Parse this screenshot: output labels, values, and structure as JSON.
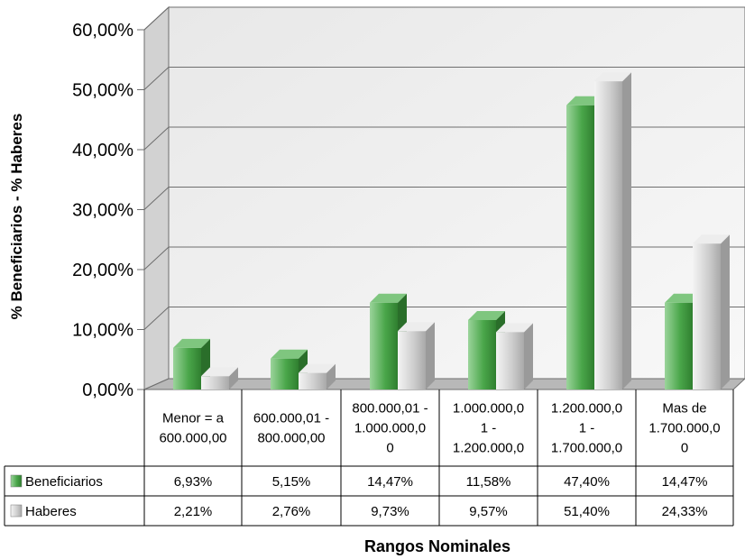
{
  "chart_data": {
    "type": "bar",
    "three_d": true,
    "title": "",
    "xlabel": "Rangos Nominales",
    "ylabel": "% Beneficiarios - % Haberes",
    "ylim": [
      0,
      60
    ],
    "y_ticks": [
      "0,00%",
      "10,00%",
      "20,00%",
      "30,00%",
      "40,00%",
      "50,00%",
      "60,00%"
    ],
    "grid": true,
    "legend": "data-table-left",
    "categories": [
      [
        "Menor = a",
        "600.000,00"
      ],
      [
        "600.000,01 -",
        "800.000,00"
      ],
      [
        "800.000,01 -",
        "1.000.000,0",
        "0"
      ],
      [
        "1.000.000,0",
        "1 -",
        "1.200.000,0"
      ],
      [
        "1.200.000,0",
        "1 -",
        "1.700.000,0"
      ],
      [
        "Mas de",
        "1.700.000,0",
        "0"
      ]
    ],
    "series": [
      {
        "name": "Beneficiarios",
        "color": "#4aa64a",
        "values": [
          6.93,
          5.15,
          14.47,
          11.58,
          47.4,
          14.47
        ],
        "labels": [
          "6,93%",
          "5,15%",
          "14,47%",
          "11,58%",
          "47,40%",
          "14,47%"
        ]
      },
      {
        "name": "Haberes",
        "color": "#cfcfcf",
        "values": [
          2.21,
          2.76,
          9.73,
          9.57,
          51.4,
          24.33
        ],
        "labels": [
          "2,21%",
          "2,76%",
          "9,73%",
          "9,57%",
          "51,40%",
          "24,33%"
        ]
      }
    ]
  }
}
